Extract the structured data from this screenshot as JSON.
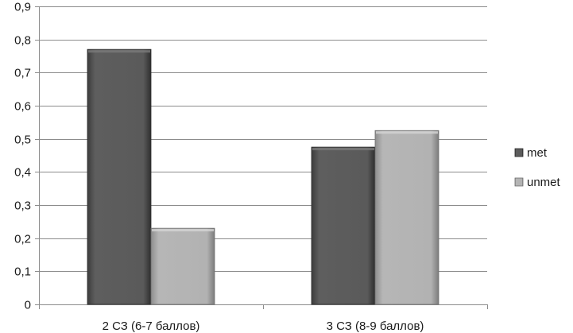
{
  "chart_data": {
    "type": "bar",
    "categories": [
      "2 СЗ (6-7 баллов)",
      "3 СЗ (8-9 баллов)"
    ],
    "series": [
      {
        "name": "met",
        "values": [
          0.77,
          0.475
        ],
        "color": "#5a5a5a"
      },
      {
        "name": "unmet",
        "values": [
          0.23,
          0.525
        ],
        "color": "#b0b0b0"
      }
    ],
    "title": "",
    "xlabel": "",
    "ylabel": "",
    "ylim": [
      0,
      0.9
    ],
    "y_ticks": [
      "0",
      "0,1",
      "0,2",
      "0,3",
      "0,4",
      "0,5",
      "0,6",
      "0,7",
      "0,8",
      "0,9"
    ],
    "grid": true,
    "legend_position": "right"
  }
}
